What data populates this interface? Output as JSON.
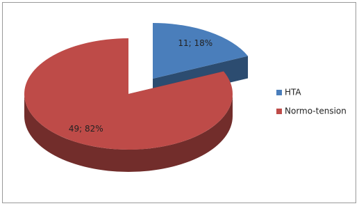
{
  "chart_data": {
    "type": "pie",
    "categories": [
      "HTA",
      "Normo-tension"
    ],
    "values": [
      11,
      49
    ],
    "value_labels": [
      "11; 18%",
      "49; 82%"
    ],
    "colors": [
      "#4a7ebb",
      "#be4b48"
    ],
    "legend": "right"
  }
}
